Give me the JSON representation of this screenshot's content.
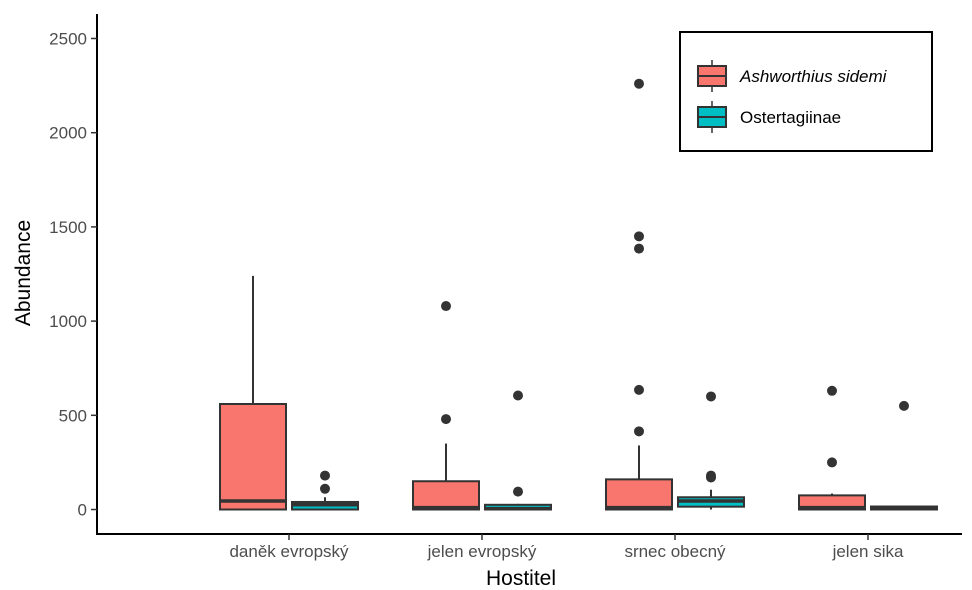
{
  "chart_data": {
    "type": "boxplot",
    "xlabel": "Hostitel",
    "ylabel": "Abundance",
    "ylim": [
      -130,
      2630
    ],
    "yticks": [
      0,
      500,
      1000,
      1500,
      2000,
      2500
    ],
    "ytick_labels": [
      "0",
      "500",
      "1000",
      "1500",
      "2000",
      "2500"
    ],
    "grid": false,
    "legend": {
      "position": "top-right"
    },
    "categories": [
      "daněk evropský",
      "jelen evropský",
      "srnec obecný",
      "jelen sika"
    ],
    "series": [
      {
        "name": "Ashworthius sidemi",
        "italic": true,
        "color": "#f8766d",
        "boxes": [
          {
            "min": 0,
            "q1": 0,
            "median": 45,
            "q3": 560,
            "max": 1240,
            "outliers": []
          },
          {
            "min": 0,
            "q1": 0,
            "median": 10,
            "q3": 150,
            "max": 350,
            "outliers": [
              480,
              1080
            ]
          },
          {
            "min": 0,
            "q1": 0,
            "median": 10,
            "q3": 160,
            "max": 340,
            "outliers": [
              415,
              635,
              1385,
              1450,
              2260
            ]
          },
          {
            "min": 0,
            "q1": 0,
            "median": 10,
            "q3": 75,
            "max": 85,
            "outliers": [
              250,
              630
            ]
          }
        ]
      },
      {
        "name": "Ostertagiinae",
        "italic": false,
        "color": "#00bfc4",
        "boxes": [
          {
            "min": 0,
            "q1": 0,
            "median": 25,
            "q3": 40,
            "max": 65,
            "outliers": [
              110,
              180
            ]
          },
          {
            "min": 0,
            "q1": 0,
            "median": 5,
            "q3": 25,
            "max": 30,
            "outliers": [
              95,
              605
            ]
          },
          {
            "min": 0,
            "q1": 15,
            "median": 45,
            "q3": 65,
            "max": 105,
            "outliers": [
              170,
              180,
              600
            ]
          },
          {
            "min": 0,
            "q1": 0,
            "median": 5,
            "q3": 12,
            "max": 15,
            "outliers": [
              550
            ]
          }
        ]
      }
    ]
  }
}
